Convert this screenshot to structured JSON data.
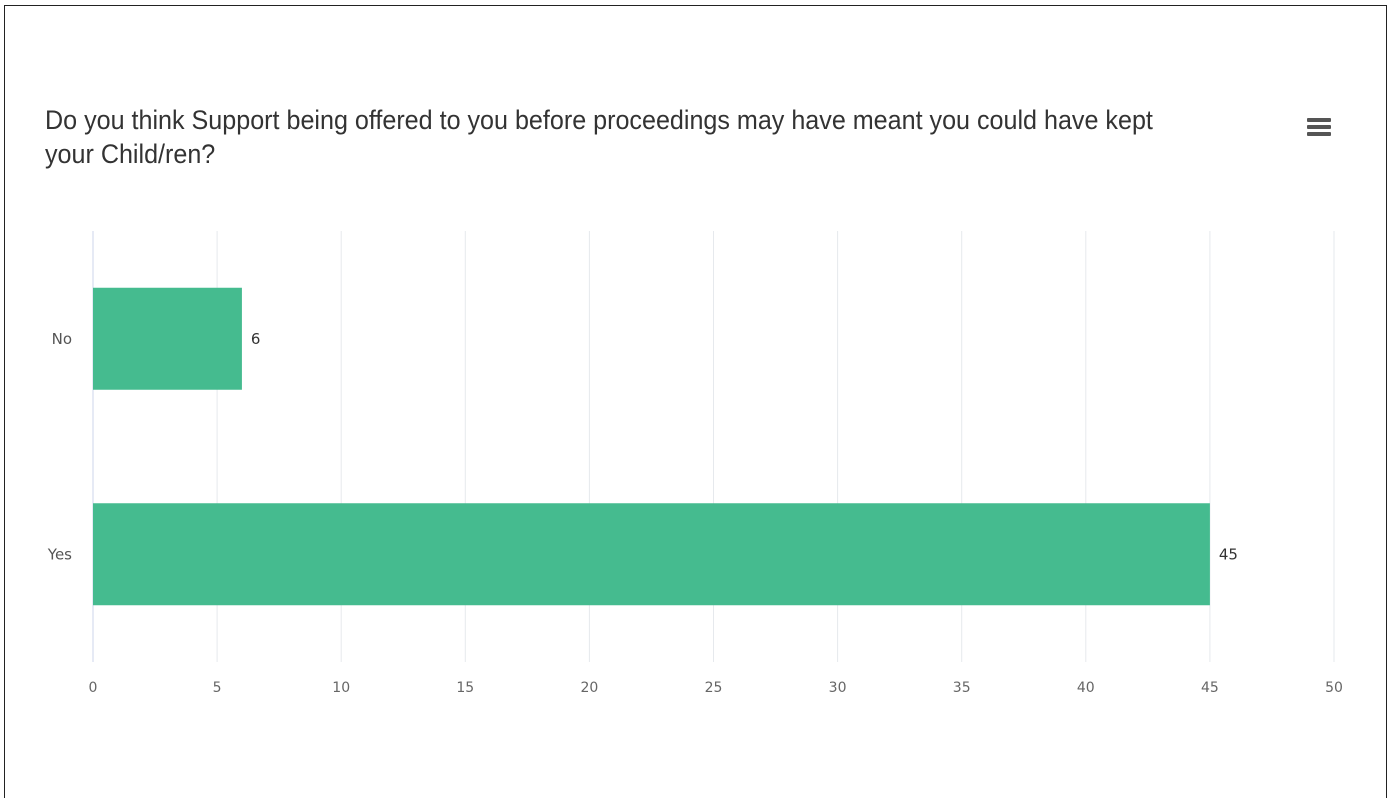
{
  "menu": {
    "icon": "hamburger-menu-icon"
  },
  "chart_data": {
    "type": "bar",
    "orientation": "horizontal",
    "title": "Do you think Support being offered to you before proceedings may have meant you could have kept your Child/ren?",
    "categories": [
      "No",
      "Yes"
    ],
    "values": [
      6,
      45
    ],
    "data_labels": [
      "6",
      "45"
    ],
    "xlim": [
      0,
      50
    ],
    "x_ticks": [
      0,
      5,
      10,
      15,
      20,
      25,
      30,
      35,
      40,
      45,
      50
    ],
    "x_tick_labels": [
      "0",
      "5",
      "10",
      "15",
      "20",
      "25",
      "30",
      "35",
      "40",
      "45",
      "50"
    ],
    "grid": true,
    "legend": "none",
    "bar_color": "#45bb8f",
    "grid_color": "#e6e9ed",
    "axis_color": "#ccd6eb"
  }
}
